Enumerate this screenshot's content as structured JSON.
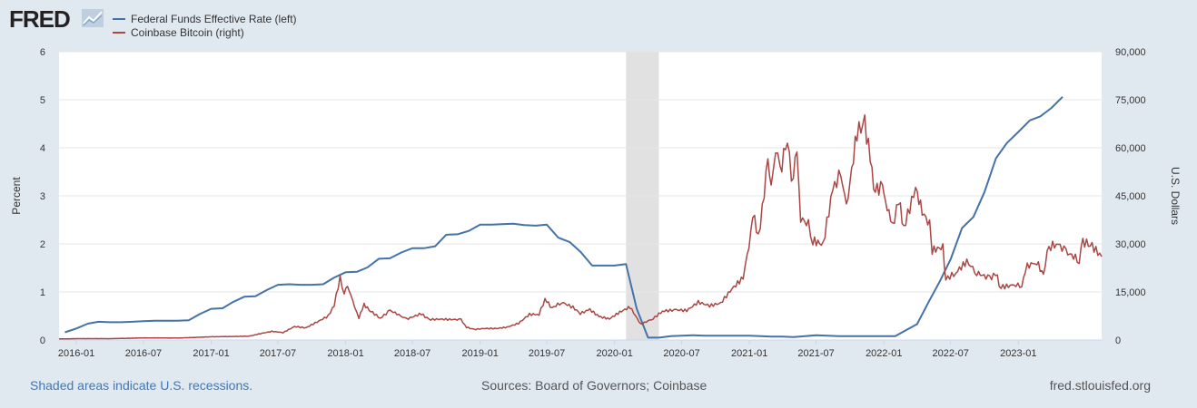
{
  "header": {
    "logo_text": "FRED",
    "logo_icon": "chart-line-icon"
  },
  "footer": {
    "recessions_note": "Shaded areas indicate U.S. recessions.",
    "sources": "Sources: Board of Governors; Coinbase",
    "site": "fred.stlouisfed.org"
  },
  "chart_data": {
    "type": "line",
    "left_axis": {
      "label": "Percent",
      "ylim": [
        0,
        6
      ],
      "ticks": [
        "0",
        "1",
        "2",
        "3",
        "4",
        "5",
        "6"
      ]
    },
    "right_axis": {
      "label": "U.S. Dollars",
      "ylim": [
        0,
        90000
      ],
      "ticks": [
        "0",
        "15,000",
        "30,000",
        "45,000",
        "60,000",
        "75,000",
        "90,000"
      ]
    },
    "x_ticks": [
      "2016-01",
      "2016-07",
      "2017-01",
      "2017-07",
      "2018-01",
      "2018-07",
      "2019-01",
      "2019-07",
      "2020-01",
      "2020-07",
      "2021-01",
      "2021-07",
      "2022-01",
      "2022-07",
      "2023-01"
    ],
    "x_range": [
      "2015-11-15",
      "2023-08-15"
    ],
    "recessions": [
      {
        "start": "2020-02-01",
        "end": "2020-04-30"
      }
    ],
    "grid": true,
    "legend_position": "top-left",
    "series": [
      {
        "name": "Federal Funds Effective Rate (left)",
        "axis": "left",
        "color": "#4572a7",
        "points": [
          [
            "2015-12-01",
            0.16
          ],
          [
            "2016-01-01",
            0.24
          ],
          [
            "2016-02-01",
            0.34
          ],
          [
            "2016-03-01",
            0.38
          ],
          [
            "2016-04-01",
            0.37
          ],
          [
            "2016-05-01",
            0.37
          ],
          [
            "2016-06-01",
            0.38
          ],
          [
            "2016-07-01",
            0.39
          ],
          [
            "2016-08-01",
            0.4
          ],
          [
            "2016-09-01",
            0.4
          ],
          [
            "2016-10-01",
            0.4
          ],
          [
            "2016-11-01",
            0.41
          ],
          [
            "2016-12-01",
            0.54
          ],
          [
            "2017-01-01",
            0.65
          ],
          [
            "2017-02-01",
            0.66
          ],
          [
            "2017-03-01",
            0.79
          ],
          [
            "2017-04-01",
            0.9
          ],
          [
            "2017-05-01",
            0.91
          ],
          [
            "2017-06-01",
            1.04
          ],
          [
            "2017-07-01",
            1.15
          ],
          [
            "2017-08-01",
            1.16
          ],
          [
            "2017-09-01",
            1.15
          ],
          [
            "2017-10-01",
            1.15
          ],
          [
            "2017-11-01",
            1.16
          ],
          [
            "2017-12-01",
            1.3
          ],
          [
            "2018-01-01",
            1.41
          ],
          [
            "2018-02-01",
            1.42
          ],
          [
            "2018-03-01",
            1.51
          ],
          [
            "2018-04-01",
            1.69
          ],
          [
            "2018-05-01",
            1.7
          ],
          [
            "2018-06-01",
            1.82
          ],
          [
            "2018-07-01",
            1.91
          ],
          [
            "2018-08-01",
            1.91
          ],
          [
            "2018-09-01",
            1.95
          ],
          [
            "2018-10-01",
            2.19
          ],
          [
            "2018-11-01",
            2.2
          ],
          [
            "2018-12-01",
            2.27
          ],
          [
            "2019-01-01",
            2.4
          ],
          [
            "2019-02-01",
            2.4
          ],
          [
            "2019-03-01",
            2.41
          ],
          [
            "2019-04-01",
            2.42
          ],
          [
            "2019-05-01",
            2.39
          ],
          [
            "2019-06-01",
            2.38
          ],
          [
            "2019-07-01",
            2.4
          ],
          [
            "2019-08-01",
            2.13
          ],
          [
            "2019-09-01",
            2.04
          ],
          [
            "2019-10-01",
            1.83
          ],
          [
            "2019-11-01",
            1.55
          ],
          [
            "2019-12-01",
            1.55
          ],
          [
            "2020-01-01",
            1.55
          ],
          [
            "2020-02-01",
            1.58
          ],
          [
            "2020-03-01",
            0.65
          ],
          [
            "2020-04-01",
            0.05
          ],
          [
            "2020-05-01",
            0.05
          ],
          [
            "2020-06-01",
            0.08
          ],
          [
            "2020-07-01",
            0.09
          ],
          [
            "2020-08-01",
            0.1
          ],
          [
            "2020-09-01",
            0.09
          ],
          [
            "2020-10-01",
            0.09
          ],
          [
            "2020-11-01",
            0.09
          ],
          [
            "2020-12-01",
            0.09
          ],
          [
            "2021-01-01",
            0.09
          ],
          [
            "2021-02-01",
            0.08
          ],
          [
            "2021-03-01",
            0.07
          ],
          [
            "2021-04-01",
            0.07
          ],
          [
            "2021-05-01",
            0.06
          ],
          [
            "2021-06-01",
            0.08
          ],
          [
            "2021-07-01",
            0.1
          ],
          [
            "2021-08-01",
            0.09
          ],
          [
            "2021-09-01",
            0.08
          ],
          [
            "2021-10-01",
            0.08
          ],
          [
            "2021-11-01",
            0.08
          ],
          [
            "2021-12-01",
            0.08
          ],
          [
            "2022-01-01",
            0.08
          ],
          [
            "2022-02-01",
            0.08
          ],
          [
            "2022-03-01",
            0.2
          ],
          [
            "2022-04-01",
            0.33
          ],
          [
            "2022-05-01",
            0.77
          ],
          [
            "2022-06-01",
            1.21
          ],
          [
            "2022-07-01",
            1.68
          ],
          [
            "2022-08-01",
            2.33
          ],
          [
            "2022-09-01",
            2.56
          ],
          [
            "2022-10-01",
            3.08
          ],
          [
            "2022-11-01",
            3.78
          ],
          [
            "2022-12-01",
            4.1
          ],
          [
            "2023-01-01",
            4.33
          ],
          [
            "2023-02-01",
            4.57
          ],
          [
            "2023-03-01",
            4.65
          ],
          [
            "2023-04-01",
            4.83
          ],
          [
            "2023-05-01",
            5.06
          ]
        ]
      },
      {
        "name": "Coinbase Bitcoin (right)",
        "axis": "right",
        "color": "#aa4643",
        "points": [
          [
            "2015-11-15",
            330
          ],
          [
            "2016-01-01",
            430
          ],
          [
            "2016-04-01",
            420
          ],
          [
            "2016-07-01",
            660
          ],
          [
            "2016-10-01",
            610
          ],
          [
            "2017-01-01",
            1000
          ],
          [
            "2017-03-01",
            1100
          ],
          [
            "2017-04-15",
            1200
          ],
          [
            "2017-05-15",
            2000
          ],
          [
            "2017-06-15",
            2700
          ],
          [
            "2017-07-15",
            2300
          ],
          [
            "2017-08-15",
            4200
          ],
          [
            "2017-09-15",
            3800
          ],
          [
            "2017-10-15",
            5600
          ],
          [
            "2017-11-15",
            7500
          ],
          [
            "2017-12-01",
            11000
          ],
          [
            "2017-12-17",
            19500
          ],
          [
            "2017-12-28",
            14500
          ],
          [
            "2018-01-06",
            17000
          ],
          [
            "2018-01-20",
            12000
          ],
          [
            "2018-02-06",
            7000
          ],
          [
            "2018-02-20",
            11000
          ],
          [
            "2018-03-10",
            9000
          ],
          [
            "2018-04-05",
            6800
          ],
          [
            "2018-05-01",
            9200
          ],
          [
            "2018-05-20",
            8200
          ],
          [
            "2018-06-15",
            6500
          ],
          [
            "2018-07-25",
            8200
          ],
          [
            "2018-08-15",
            6400
          ],
          [
            "2018-09-15",
            6500
          ],
          [
            "2018-10-15",
            6400
          ],
          [
            "2018-11-10",
            6350
          ],
          [
            "2018-11-25",
            4000
          ],
          [
            "2018-12-15",
            3300
          ],
          [
            "2019-01-15",
            3600
          ],
          [
            "2019-02-15",
            3600
          ],
          [
            "2019-03-15",
            4000
          ],
          [
            "2019-04-15",
            5200
          ],
          [
            "2019-05-15",
            8000
          ],
          [
            "2019-06-10",
            8000
          ],
          [
            "2019-06-26",
            12800
          ],
          [
            "2019-07-15",
            10000
          ],
          [
            "2019-08-10",
            11800
          ],
          [
            "2019-09-10",
            10200
          ],
          [
            "2019-09-30",
            8300
          ],
          [
            "2019-10-26",
            9500
          ],
          [
            "2019-11-20",
            7300
          ],
          [
            "2019-12-18",
            6600
          ],
          [
            "2020-01-15",
            8700
          ],
          [
            "2020-02-12",
            10300
          ],
          [
            "2020-03-12",
            4900
          ],
          [
            "2020-04-15",
            6700
          ],
          [
            "2020-05-10",
            9000
          ],
          [
            "2020-06-15",
            9400
          ],
          [
            "2020-07-15",
            9200
          ],
          [
            "2020-08-15",
            11800
          ],
          [
            "2020-09-15",
            10700
          ],
          [
            "2020-10-15",
            11500
          ],
          [
            "2020-11-15",
            16000
          ],
          [
            "2020-12-15",
            19500
          ],
          [
            "2021-01-05",
            33000
          ],
          [
            "2021-01-10",
            40000
          ],
          [
            "2021-01-25",
            32000
          ],
          [
            "2021-02-10",
            45000
          ],
          [
            "2021-02-20",
            57000
          ],
          [
            "2021-03-01",
            47000
          ],
          [
            "2021-03-13",
            61000
          ],
          [
            "2021-03-25",
            52000
          ],
          [
            "2021-04-14",
            63500
          ],
          [
            "2021-04-25",
            49000
          ],
          [
            "2021-05-10",
            58000
          ],
          [
            "2021-05-20",
            38000
          ],
          [
            "2021-06-10",
            36000
          ],
          [
            "2021-06-22",
            31000
          ],
          [
            "2021-07-20",
            29800
          ],
          [
            "2021-08-15",
            47000
          ],
          [
            "2021-09-06",
            52000
          ],
          [
            "2021-09-21",
            41000
          ],
          [
            "2021-10-20",
            65000
          ],
          [
            "2021-11-10",
            67500
          ],
          [
            "2021-11-25",
            57000
          ],
          [
            "2021-12-04",
            47000
          ],
          [
            "2021-12-28",
            47500
          ],
          [
            "2022-01-10",
            42000
          ],
          [
            "2022-01-24",
            35000
          ],
          [
            "2022-02-10",
            44000
          ],
          [
            "2022-02-24",
            35000
          ],
          [
            "2022-03-28",
            47500
          ],
          [
            "2022-04-15",
            40000
          ],
          [
            "2022-05-05",
            36000
          ],
          [
            "2022-05-12",
            28000
          ],
          [
            "2022-06-10",
            29000
          ],
          [
            "2022-06-18",
            19000
          ],
          [
            "2022-07-15",
            21000
          ],
          [
            "2022-08-14",
            24500
          ],
          [
            "2022-09-10",
            21000
          ],
          [
            "2022-10-15",
            19200
          ],
          [
            "2022-11-05",
            21000
          ],
          [
            "2022-11-10",
            16500
          ],
          [
            "2022-12-15",
            17000
          ],
          [
            "2023-01-10",
            17200
          ],
          [
            "2023-01-25",
            23000
          ],
          [
            "2023-02-20",
            24500
          ],
          [
            "2023-03-10",
            20000
          ],
          [
            "2023-03-20",
            28000
          ],
          [
            "2023-04-14",
            30500
          ],
          [
            "2023-05-10",
            27500
          ],
          [
            "2023-06-15",
            25000
          ],
          [
            "2023-06-25",
            30500
          ],
          [
            "2023-07-15",
            30000
          ],
          [
            "2023-08-15",
            26000
          ]
        ]
      }
    ]
  }
}
